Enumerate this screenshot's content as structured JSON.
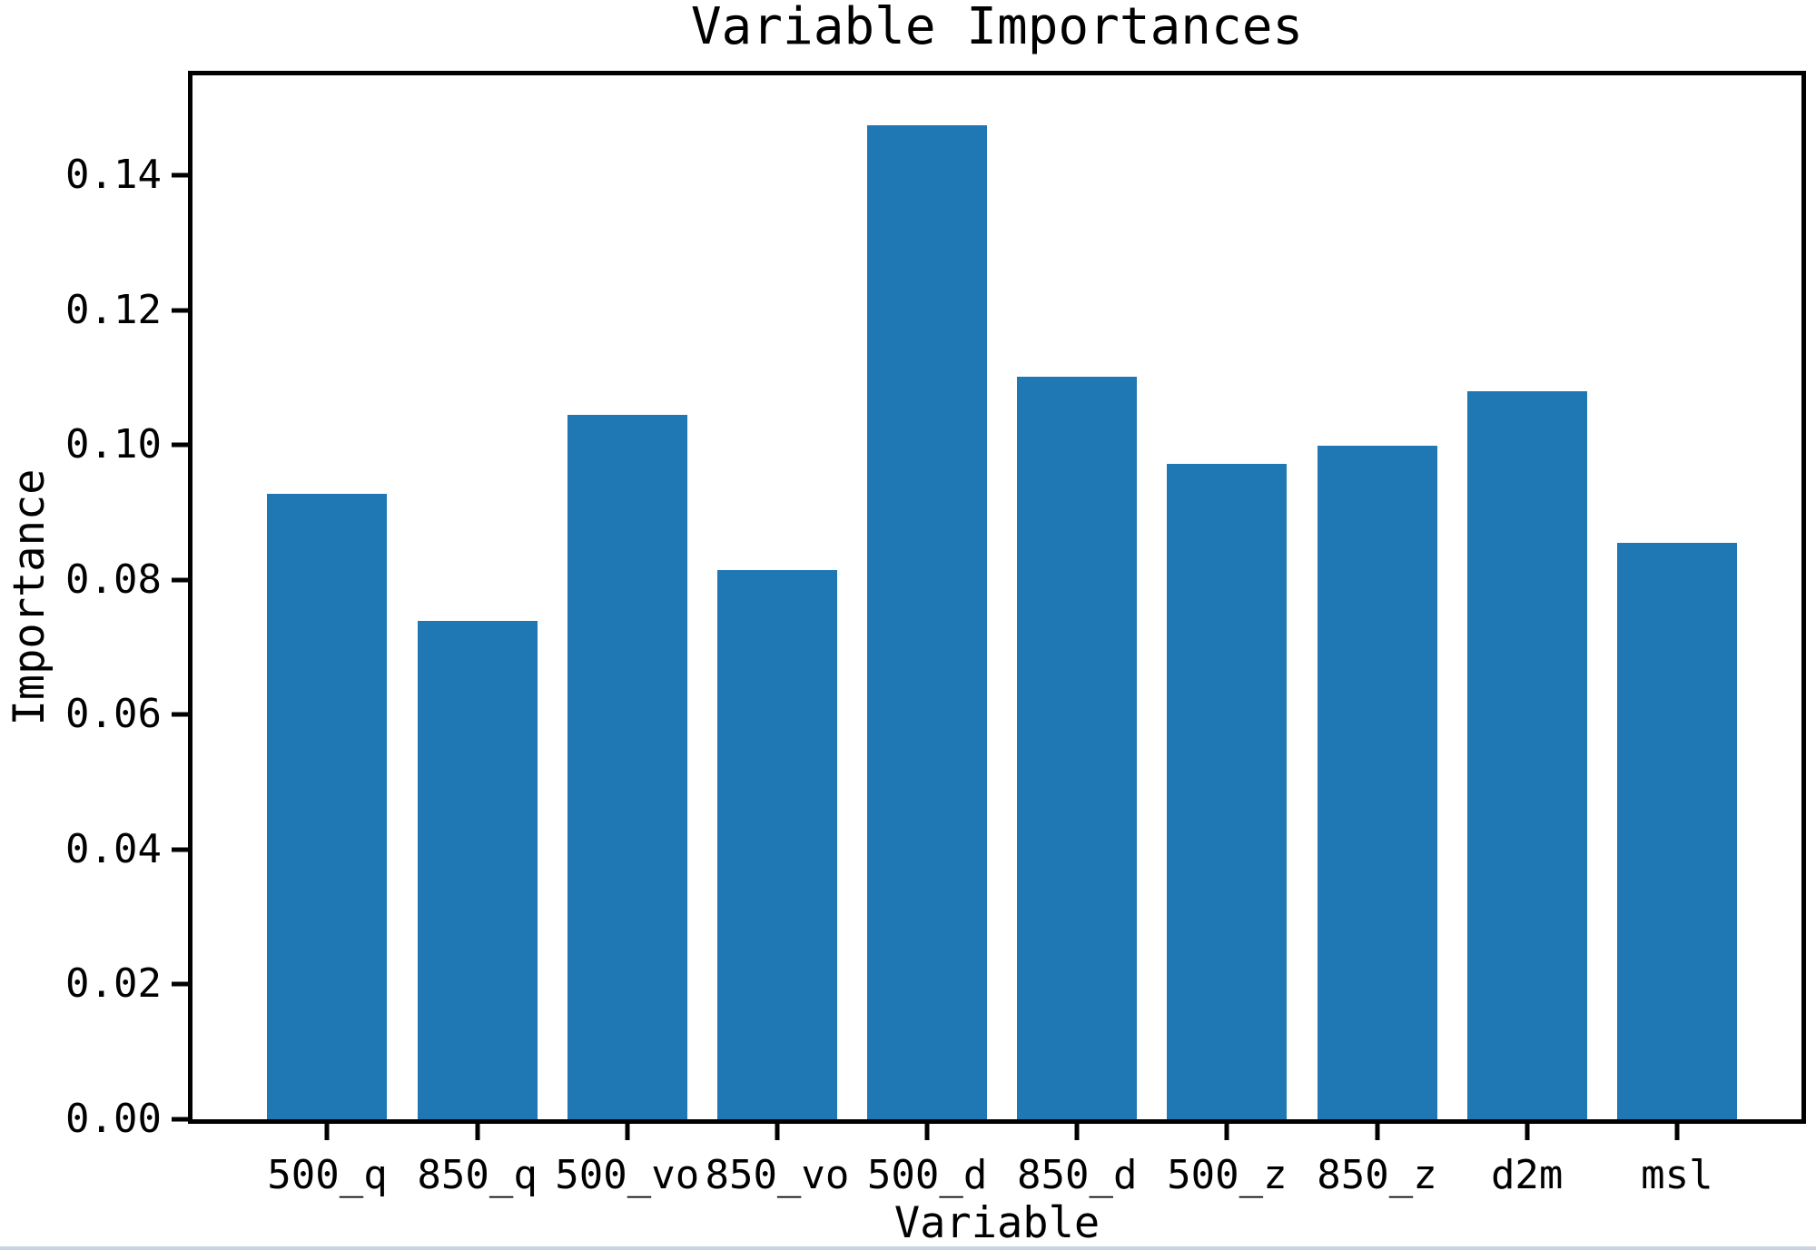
{
  "chart_data": {
    "type": "bar",
    "title": "Variable Importances",
    "xlabel": "Variable",
    "ylabel": "Importance",
    "categories": [
      "500_q",
      "850_q",
      "500_vo",
      "850_vo",
      "500_d",
      "850_d",
      "500_z",
      "850_z",
      "d2m",
      "msl"
    ],
    "values": [
      0.0928,
      0.0739,
      0.1045,
      0.0814,
      0.1474,
      0.1101,
      0.0972,
      0.0999,
      0.108,
      0.0855
    ],
    "ytick_labels": [
      "0.00",
      "0.02",
      "0.04",
      "0.06",
      "0.08",
      "0.10",
      "0.12",
      "0.14"
    ],
    "ytick_values": [
      0.0,
      0.02,
      0.04,
      0.06,
      0.08,
      0.1,
      0.12,
      0.14
    ],
    "ylim": [
      0,
      0.1548
    ],
    "grid": "off",
    "legend": "none",
    "bar_color": "#1f77b4",
    "axis_color": "#000000",
    "plot_background": "#ffffff",
    "bottom_edge_strip_color": "#c9d5e3"
  }
}
